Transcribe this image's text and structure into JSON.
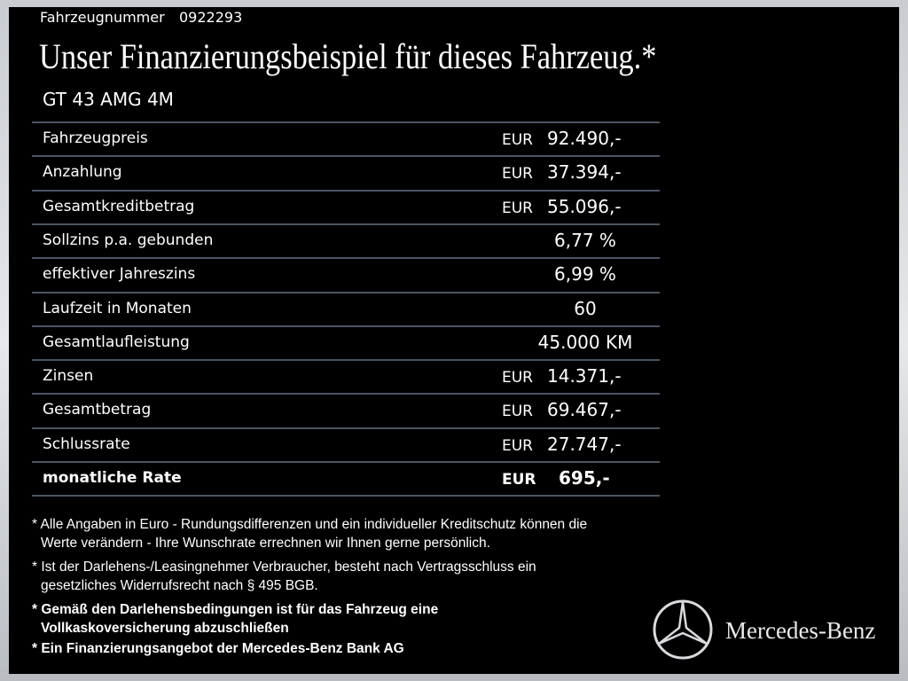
{
  "header": {
    "vehicle_number_label": "Fahrzeugnummer",
    "vehicle_number": "0922293",
    "title": "Unser Finanzierungsbeispiel für dieses Fahrzeug.*",
    "model": "GT 43 AMG 4M"
  },
  "table": {
    "rows": [
      {
        "label": "Fahrzeugpreis",
        "currency": "EUR",
        "amount": "92.490,-"
      },
      {
        "label": "Anzahlung",
        "currency": "EUR",
        "amount": "37.394,-"
      },
      {
        "label": "Gesamtkreditbetrag",
        "currency": "EUR",
        "amount": "55.096,-"
      },
      {
        "label": "Sollzins p.a. gebunden",
        "amount": "6,77 %"
      },
      {
        "label": "effektiver Jahreszins",
        "amount": "6,99 %"
      },
      {
        "label": "Laufzeit in Monaten",
        "amount": "60"
      },
      {
        "label": "Gesamtlaufleistung",
        "amount": "45.000 KM"
      },
      {
        "label": "Zinsen",
        "currency": "EUR",
        "amount": "14.371,-"
      },
      {
        "label": "Gesamtbetrag",
        "currency": "EUR",
        "amount": "69.467,-"
      },
      {
        "label": "Schlussrate",
        "currency": "EUR",
        "amount": "27.747,-"
      },
      {
        "label": "monatliche Rate",
        "currency": "EUR",
        "amount": "695,-"
      }
    ]
  },
  "notes": [
    {
      "lines": [
        "* Alle Angaben in Euro - Rundungsdifferenzen und ein individueller Kreditschutz können die",
        "Werte verändern - Ihre Wunschrate errechnen wir Ihnen gerne persönlich."
      ]
    },
    {
      "lines": [
        "* Ist der Darlehens-/Leasingnehmer Verbraucher, besteht nach Vertragsschluss ein",
        "gesetzliches Widerrufsrecht nach § 495 BGB."
      ]
    },
    {
      "lines": [
        "* Gemäß den Darlehensbedingungen ist für das Fahrzeug eine",
        "Vollkaskoversicherung abzuschließen"
      ]
    },
    {
      "lines": [
        "* Ein Finanzierungsangebot der Mercedes-Benz Bank AG"
      ]
    }
  ],
  "brand": "Mercedes-Benz"
}
